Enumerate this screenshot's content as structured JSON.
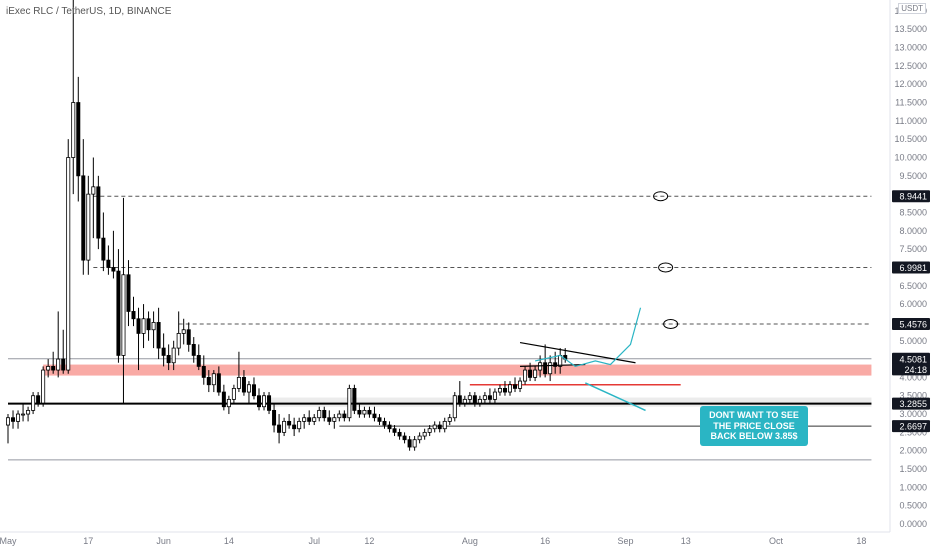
{
  "header": {
    "symbol_line": "iExec RLC / TetherUS, 1D, BINANCE",
    "unit_label": "USDT"
  },
  "colors": {
    "up_candle": "#ffffff",
    "candle_outline": "#000000",
    "support_zone": "#f8a19b",
    "resistance_line": "#e53935",
    "callout_bg": "#2ab5c4",
    "current_price_bg": "#000000"
  },
  "annotation": {
    "callout_text": "DONT WANT TO SEE THE PRICE CLOSE BACK BELOW 3.85$"
  },
  "chart_data": {
    "type": "candlestick",
    "title": "iExec RLC / TetherUS, 1D, BINANCE",
    "y_axis_ticks": [
      "0.0000",
      "0.5000",
      "1.0000",
      "1.5000",
      "2.0000",
      "2.5000",
      "3.0000",
      "3.5000",
      "4.0000",
      "4.5000",
      "5.0000",
      "5.5000",
      "6.0000",
      "6.5000",
      "7.0000",
      "7.5000",
      "8.0000",
      "8.5000",
      "9.0000",
      "9.5000",
      "10.0000",
      "10.5000",
      "11.0000",
      "11.5000",
      "12.0000",
      "12.5000",
      "13.0000",
      "13.5000",
      "14.0000"
    ],
    "ylim": [
      0,
      14
    ],
    "x_axis_ticks": [
      {
        "label": "May",
        "day": 0
      },
      {
        "label": "17",
        "day": 16
      },
      {
        "label": "Jun",
        "day": 31
      },
      {
        "label": "14",
        "day": 44
      },
      {
        "label": "Jul",
        "day": 61
      },
      {
        "label": "12",
        "day": 72
      },
      {
        "label": "Aug",
        "day": 92
      },
      {
        "label": "16",
        "day": 107
      },
      {
        "label": "Sep",
        "day": 123
      },
      {
        "label": "13",
        "day": 135
      },
      {
        "label": "Oct",
        "day": 153
      },
      {
        "label": "18",
        "day": 170
      }
    ],
    "price_labels": [
      {
        "text": "8.9441",
        "value": 8.9441,
        "style": "dark"
      },
      {
        "text": "6.9981",
        "value": 6.9981,
        "style": "dark"
      },
      {
        "text": "5.4576",
        "value": 5.4576,
        "style": "dark"
      },
      {
        "text": "4.5081",
        "value": 4.5081,
        "style": "dark"
      },
      {
        "text": "24:18",
        "value": 4.22,
        "style": "dark"
      },
      {
        "text": "3.2855",
        "value": 3.2855,
        "style": "dark"
      },
      {
        "text": "2.6697",
        "value": 2.6697,
        "style": "dark"
      }
    ],
    "levels": [
      {
        "value": 8.9441,
        "style": "dashed",
        "from_day": 17,
        "to_day": 172
      },
      {
        "value": 6.9981,
        "style": "dashed",
        "from_day": 17,
        "to_day": 172
      },
      {
        "value": 5.4576,
        "style": "dashed",
        "from_day": 34,
        "to_day": 172
      },
      {
        "value": 4.5081,
        "style": "thin-gray",
        "from_day": 0,
        "to_day": 172
      },
      {
        "value": 3.2855,
        "style": "thick-black",
        "from_day": 0,
        "to_day": 172
      },
      {
        "value": 2.6697,
        "style": "thin-black",
        "from_day": 66,
        "to_day": 172
      },
      {
        "value": 1.75,
        "style": "thin-gray",
        "from_day": 0,
        "to_day": 172
      },
      {
        "value": 3.8,
        "style": "red",
        "from_day": 92,
        "to_day": 134
      }
    ],
    "zones": [
      {
        "low": 4.05,
        "high": 4.35,
        "from_day": 7,
        "to_day": 172,
        "color": "#f8a19b"
      },
      {
        "low": 3.2,
        "high": 3.45,
        "from_day": 52,
        "to_day": 172,
        "color": "#e0e0e0"
      }
    ],
    "candles": [
      {
        "o": 2.7,
        "h": 3.0,
        "l": 2.2,
        "c": 2.9
      },
      {
        "o": 2.9,
        "h": 3.1,
        "l": 2.6,
        "c": 2.8
      },
      {
        "o": 2.8,
        "h": 3.1,
        "l": 2.6,
        "c": 3.0
      },
      {
        "o": 3.0,
        "h": 3.3,
        "l": 2.8,
        "c": 3.0
      },
      {
        "o": 3.0,
        "h": 3.2,
        "l": 2.8,
        "c": 3.1
      },
      {
        "o": 3.1,
        "h": 3.6,
        "l": 3.0,
        "c": 3.5
      },
      {
        "o": 3.5,
        "h": 3.6,
        "l": 3.2,
        "c": 3.3
      },
      {
        "o": 3.3,
        "h": 4.3,
        "l": 3.2,
        "c": 4.2
      },
      {
        "o": 4.2,
        "h": 4.5,
        "l": 4.0,
        "c": 4.3
      },
      {
        "o": 4.3,
        "h": 4.7,
        "l": 4.1,
        "c": 4.2
      },
      {
        "o": 4.2,
        "h": 5.8,
        "l": 4.0,
        "c": 4.5
      },
      {
        "o": 4.5,
        "h": 5.3,
        "l": 4.1,
        "c": 4.2
      },
      {
        "o": 4.2,
        "h": 10.5,
        "l": 4.1,
        "c": 10.0
      },
      {
        "o": 10.0,
        "h": 14.5,
        "l": 9.0,
        "c": 11.5
      },
      {
        "o": 11.5,
        "h": 12.2,
        "l": 8.8,
        "c": 9.5
      },
      {
        "o": 9.5,
        "h": 10.5,
        "l": 6.8,
        "c": 7.2
      },
      {
        "o": 7.2,
        "h": 9.5,
        "l": 6.8,
        "c": 9.0
      },
      {
        "o": 9.0,
        "h": 10.0,
        "l": 7.8,
        "c": 9.2
      },
      {
        "o": 9.2,
        "h": 9.5,
        "l": 7.5,
        "c": 7.8
      },
      {
        "o": 7.8,
        "h": 8.5,
        "l": 6.9,
        "c": 7.2
      },
      {
        "o": 7.2,
        "h": 7.6,
        "l": 6.8,
        "c": 7.0
      },
      {
        "o": 7.0,
        "h": 8.0,
        "l": 6.7,
        "c": 6.9
      },
      {
        "o": 6.9,
        "h": 7.5,
        "l": 4.4,
        "c": 4.6
      },
      {
        "o": 4.6,
        "h": 8.9,
        "l": 3.3,
        "c": 6.8
      },
      {
        "o": 6.8,
        "h": 7.2,
        "l": 5.4,
        "c": 5.8
      },
      {
        "o": 5.8,
        "h": 6.2,
        "l": 5.4,
        "c": 5.6
      },
      {
        "o": 5.6,
        "h": 5.9,
        "l": 4.2,
        "c": 5.2
      },
      {
        "o": 5.2,
        "h": 6.0,
        "l": 4.8,
        "c": 5.6
      },
      {
        "o": 5.6,
        "h": 5.8,
        "l": 5.0,
        "c": 5.3
      },
      {
        "o": 5.3,
        "h": 5.8,
        "l": 4.8,
        "c": 5.5
      },
      {
        "o": 5.5,
        "h": 5.9,
        "l": 4.5,
        "c": 4.8
      },
      {
        "o": 4.8,
        "h": 5.2,
        "l": 4.3,
        "c": 4.6
      },
      {
        "o": 4.6,
        "h": 4.9,
        "l": 4.2,
        "c": 4.4
      },
      {
        "o": 4.4,
        "h": 5.0,
        "l": 4.2,
        "c": 4.8
      },
      {
        "o": 4.8,
        "h": 5.8,
        "l": 4.6,
        "c": 5.2
      },
      {
        "o": 5.2,
        "h": 5.6,
        "l": 4.9,
        "c": 5.3
      },
      {
        "o": 5.3,
        "h": 5.5,
        "l": 4.7,
        "c": 4.9
      },
      {
        "o": 4.9,
        "h": 5.1,
        "l": 4.4,
        "c": 4.6
      },
      {
        "o": 4.6,
        "h": 4.9,
        "l": 4.2,
        "c": 4.3
      },
      {
        "o": 4.3,
        "h": 4.6,
        "l": 3.8,
        "c": 4.0
      },
      {
        "o": 4.0,
        "h": 4.2,
        "l": 3.6,
        "c": 3.8
      },
      {
        "o": 3.8,
        "h": 4.2,
        "l": 3.6,
        "c": 4.1
      },
      {
        "o": 4.1,
        "h": 4.3,
        "l": 3.5,
        "c": 3.6
      },
      {
        "o": 3.6,
        "h": 3.8,
        "l": 3.1,
        "c": 3.2
      },
      {
        "o": 3.2,
        "h": 3.5,
        "l": 3.0,
        "c": 3.4
      },
      {
        "o": 3.4,
        "h": 3.8,
        "l": 3.3,
        "c": 3.7
      },
      {
        "o": 3.7,
        "h": 4.7,
        "l": 3.6,
        "c": 4.0
      },
      {
        "o": 4.0,
        "h": 4.2,
        "l": 3.5,
        "c": 3.6
      },
      {
        "o": 3.6,
        "h": 3.9,
        "l": 3.3,
        "c": 3.8
      },
      {
        "o": 3.8,
        "h": 4.0,
        "l": 3.4,
        "c": 3.5
      },
      {
        "o": 3.5,
        "h": 3.7,
        "l": 3.1,
        "c": 3.2
      },
      {
        "o": 3.2,
        "h": 3.6,
        "l": 3.1,
        "c": 3.5
      },
      {
        "o": 3.5,
        "h": 3.6,
        "l": 3.0,
        "c": 3.1
      },
      {
        "o": 3.1,
        "h": 3.3,
        "l": 2.5,
        "c": 2.7
      },
      {
        "o": 2.7,
        "h": 3.0,
        "l": 2.2,
        "c": 2.5
      },
      {
        "o": 2.5,
        "h": 2.9,
        "l": 2.4,
        "c": 2.8
      },
      {
        "o": 2.8,
        "h": 3.0,
        "l": 2.6,
        "c": 2.7
      },
      {
        "o": 2.7,
        "h": 2.9,
        "l": 2.4,
        "c": 2.6
      },
      {
        "o": 2.6,
        "h": 2.9,
        "l": 2.5,
        "c": 2.8
      },
      {
        "o": 2.8,
        "h": 3.0,
        "l": 2.6,
        "c": 2.9
      },
      {
        "o": 2.9,
        "h": 3.1,
        "l": 2.7,
        "c": 2.8
      },
      {
        "o": 2.8,
        "h": 3.0,
        "l": 2.7,
        "c": 2.9
      },
      {
        "o": 2.9,
        "h": 3.2,
        "l": 2.8,
        "c": 3.1
      },
      {
        "o": 3.1,
        "h": 3.2,
        "l": 2.8,
        "c": 2.9
      },
      {
        "o": 2.9,
        "h": 3.1,
        "l": 2.7,
        "c": 2.8
      },
      {
        "o": 2.8,
        "h": 3.0,
        "l": 2.6,
        "c": 2.9
      },
      {
        "o": 2.9,
        "h": 3.1,
        "l": 2.8,
        "c": 3.0
      },
      {
        "o": 3.0,
        "h": 3.1,
        "l": 2.8,
        "c": 2.9
      },
      {
        "o": 2.9,
        "h": 3.8,
        "l": 2.8,
        "c": 3.7
      },
      {
        "o": 3.7,
        "h": 3.8,
        "l": 3.0,
        "c": 3.1
      },
      {
        "o": 3.1,
        "h": 3.3,
        "l": 2.9,
        "c": 3.0
      },
      {
        "o": 3.0,
        "h": 3.2,
        "l": 2.9,
        "c": 3.1
      },
      {
        "o": 3.1,
        "h": 3.2,
        "l": 2.9,
        "c": 3.0
      },
      {
        "o": 3.0,
        "h": 3.2,
        "l": 2.8,
        "c": 2.9
      },
      {
        "o": 2.9,
        "h": 3.0,
        "l": 2.7,
        "c": 2.8
      },
      {
        "o": 2.8,
        "h": 2.9,
        "l": 2.6,
        "c": 2.7
      },
      {
        "o": 2.7,
        "h": 2.8,
        "l": 2.5,
        "c": 2.6
      },
      {
        "o": 2.6,
        "h": 2.7,
        "l": 2.4,
        "c": 2.5
      },
      {
        "o": 2.5,
        "h": 2.6,
        "l": 2.3,
        "c": 2.4
      },
      {
        "o": 2.4,
        "h": 2.5,
        "l": 2.2,
        "c": 2.3
      },
      {
        "o": 2.3,
        "h": 2.4,
        "l": 2.0,
        "c": 2.1
      },
      {
        "o": 2.1,
        "h": 2.4,
        "l": 2.0,
        "c": 2.3
      },
      {
        "o": 2.3,
        "h": 2.5,
        "l": 2.2,
        "c": 2.4
      },
      {
        "o": 2.4,
        "h": 2.6,
        "l": 2.3,
        "c": 2.5
      },
      {
        "o": 2.5,
        "h": 2.7,
        "l": 2.4,
        "c": 2.6
      },
      {
        "o": 2.6,
        "h": 2.8,
        "l": 2.5,
        "c": 2.7
      },
      {
        "o": 2.7,
        "h": 2.8,
        "l": 2.5,
        "c": 2.6
      },
      {
        "o": 2.6,
        "h": 2.9,
        "l": 2.5,
        "c": 2.8
      },
      {
        "o": 2.8,
        "h": 3.0,
        "l": 2.7,
        "c": 2.9
      },
      {
        "o": 2.9,
        "h": 3.6,
        "l": 2.8,
        "c": 3.5
      },
      {
        "o": 3.5,
        "h": 3.9,
        "l": 3.2,
        "c": 3.3
      },
      {
        "o": 3.3,
        "h": 3.5,
        "l": 3.2,
        "c": 3.4
      },
      {
        "o": 3.4,
        "h": 3.6,
        "l": 3.3,
        "c": 3.5
      },
      {
        "o": 3.5,
        "h": 3.6,
        "l": 3.2,
        "c": 3.3
      },
      {
        "o": 3.3,
        "h": 3.5,
        "l": 3.2,
        "c": 3.4
      },
      {
        "o": 3.4,
        "h": 3.6,
        "l": 3.3,
        "c": 3.5
      },
      {
        "o": 3.5,
        "h": 3.7,
        "l": 3.3,
        "c": 3.4
      },
      {
        "o": 3.4,
        "h": 3.7,
        "l": 3.3,
        "c": 3.6
      },
      {
        "o": 3.6,
        "h": 3.8,
        "l": 3.5,
        "c": 3.7
      },
      {
        "o": 3.7,
        "h": 3.9,
        "l": 3.5,
        "c": 3.6
      },
      {
        "o": 3.6,
        "h": 3.9,
        "l": 3.5,
        "c": 3.8
      },
      {
        "o": 3.8,
        "h": 4.0,
        "l": 3.6,
        "c": 3.7
      },
      {
        "o": 3.7,
        "h": 4.0,
        "l": 3.6,
        "c": 3.9
      },
      {
        "o": 3.9,
        "h": 4.3,
        "l": 3.8,
        "c": 4.2
      },
      {
        "o": 4.2,
        "h": 4.4,
        "l": 3.9,
        "c": 4.0
      },
      {
        "o": 4.0,
        "h": 4.3,
        "l": 3.9,
        "c": 4.2
      },
      {
        "o": 4.2,
        "h": 4.6,
        "l": 4.0,
        "c": 4.4
      },
      {
        "o": 4.4,
        "h": 4.9,
        "l": 4.0,
        "c": 4.1
      },
      {
        "o": 4.1,
        "h": 4.6,
        "l": 3.9,
        "c": 4.4
      },
      {
        "o": 4.4,
        "h": 4.7,
        "l": 4.1,
        "c": 4.3
      },
      {
        "o": 4.3,
        "h": 4.8,
        "l": 4.1,
        "c": 4.6
      },
      {
        "o": 4.6,
        "h": 4.8,
        "l": 4.4,
        "c": 4.5
      }
    ],
    "drawings": [
      {
        "kind": "triangle-upper",
        "from": [
          102,
          4.95
        ],
        "to": [
          125,
          4.4
        ]
      },
      {
        "kind": "triangle-lower",
        "from": [
          102,
          4.3
        ],
        "to": [
          115,
          4.35
        ]
      },
      {
        "kind": "path-projection",
        "points": [
          [
            105,
            4.45
          ],
          [
            110,
            4.6
          ],
          [
            113,
            4.3
          ],
          [
            117,
            4.45
          ],
          [
            120,
            4.35
          ],
          [
            124,
            4.9
          ],
          [
            126,
            5.9
          ]
        ]
      },
      {
        "kind": "circle",
        "at": [
          130,
          8.9441
        ]
      },
      {
        "kind": "circle",
        "at": [
          131,
          6.9981
        ]
      },
      {
        "kind": "circle",
        "at": [
          132,
          5.4576
        ]
      },
      {
        "kind": "callout-arrow",
        "from": [
          115,
          3.85
        ],
        "to": [
          127,
          3.1
        ]
      }
    ]
  }
}
